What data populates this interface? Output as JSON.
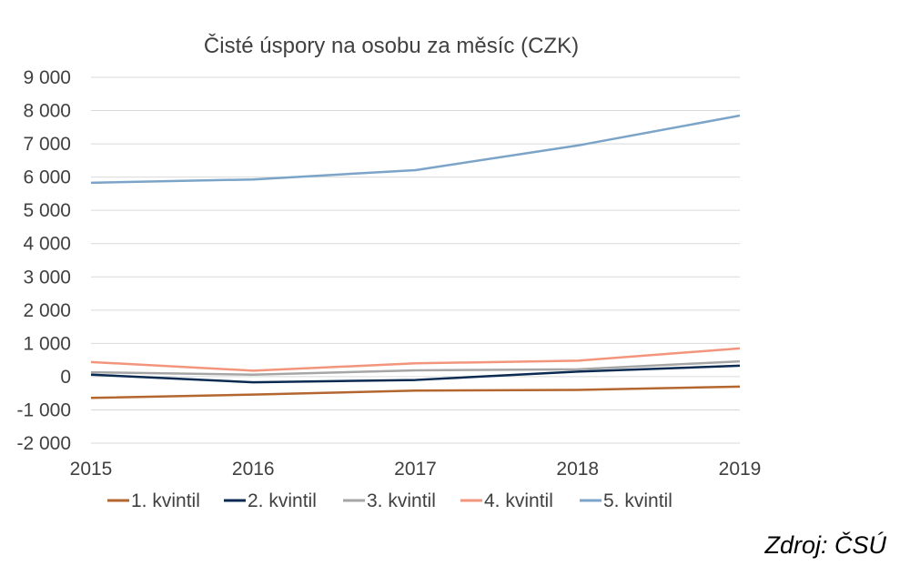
{
  "chart_data": {
    "type": "line",
    "title": "Čisté úspory na osobu za měsíc (CZK)",
    "categories": [
      "2015",
      "2016",
      "2017",
      "2018",
      "2019"
    ],
    "ylim": [
      -2000,
      9000
    ],
    "yticks": [
      -2000,
      -1000,
      0,
      1000,
      2000,
      3000,
      4000,
      5000,
      6000,
      7000,
      8000,
      9000
    ],
    "ytick_labels": [
      "-2 000",
      "-1 000",
      "0",
      "1 000",
      "2 000",
      "3 000",
      "4 000",
      "5 000",
      "6 000",
      "7 000",
      "8 000",
      "9 000"
    ],
    "grid": true,
    "legend_position": "bottom",
    "series": [
      {
        "name": "1. kvintil",
        "color": "#B3662F",
        "values": [
          -640,
          -540,
          -420,
          -400,
          -300
        ]
      },
      {
        "name": "2. kvintil",
        "color": "#0B2A52",
        "values": [
          60,
          -170,
          -100,
          150,
          330
        ]
      },
      {
        "name": "3. kvintil",
        "color": "#A6A6A6",
        "values": [
          130,
          60,
          190,
          220,
          460
        ]
      },
      {
        "name": "4. kvintil",
        "color": "#F2957C",
        "values": [
          440,
          180,
          400,
          480,
          850
        ]
      },
      {
        "name": "5. kvintil",
        "color": "#7BA4C8",
        "values": [
          5830,
          5930,
          6210,
          6950,
          7850
        ]
      }
    ]
  },
  "source": "Zdroj: ČSÚ"
}
